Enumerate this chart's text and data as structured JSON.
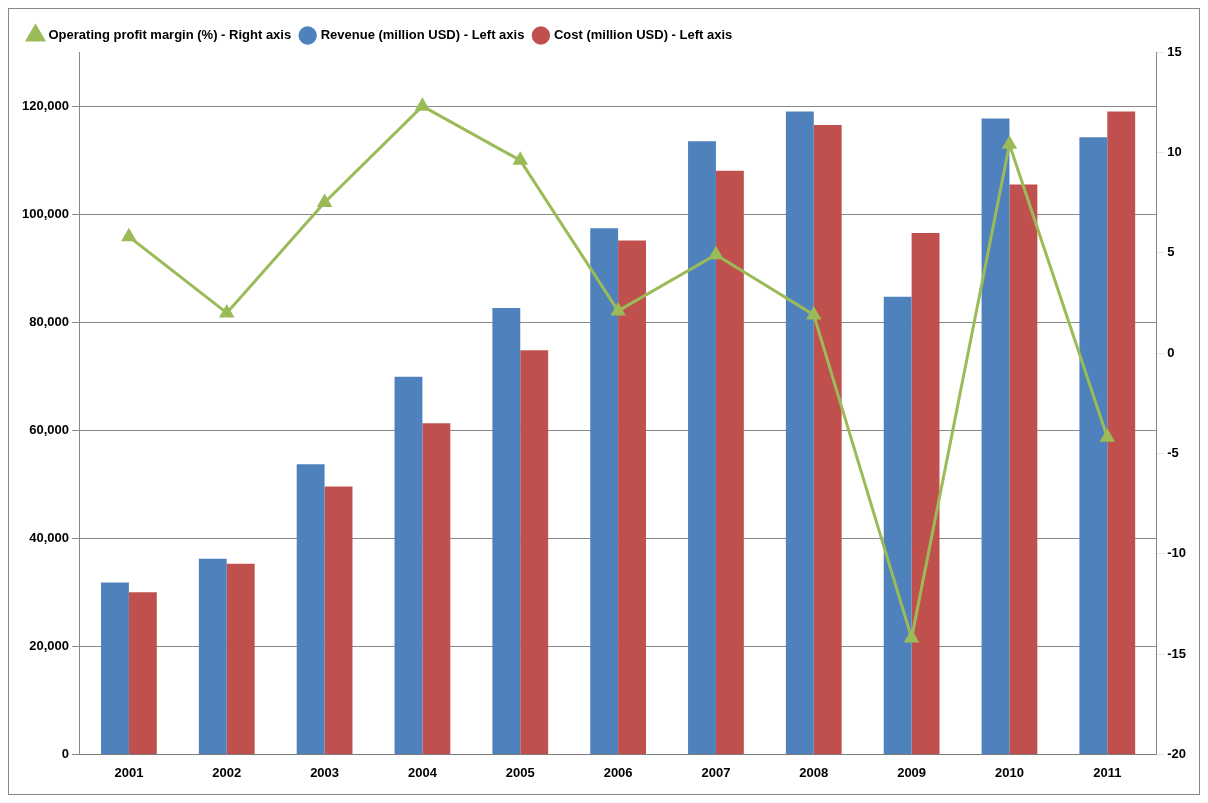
{
  "chart_data": {
    "type": "bar",
    "categories": [
      "2001",
      "2002",
      "2003",
      "2004",
      "2005",
      "2006",
      "2007",
      "2008",
      "2009",
      "2010",
      "2011"
    ],
    "series": [
      {
        "name": "Revenue (million USD) - Left axis",
        "color": "#4f81bd",
        "values": [
          31800,
          36200,
          53700,
          69900,
          82600,
          97400,
          113500,
          119000,
          84700,
          117700,
          114200
        ]
      },
      {
        "name": "Cost (million USD) - Left axis",
        "color": "#c0504d",
        "values": [
          30000,
          35300,
          49600,
          61300,
          74800,
          95100,
          108000,
          116500,
          96500,
          105500,
          119000
        ]
      },
      {
        "name": "Operating profit margin (%) - Right axis",
        "type": "line",
        "axis": "y2",
        "color": "#9bbb59",
        "marker": "triangle",
        "values": [
          5.8,
          2.0,
          7.5,
          12.3,
          9.6,
          2.1,
          4.9,
          1.9,
          -14.2,
          10.4,
          -4.2
        ]
      }
    ],
    "ylim": [
      0,
      130000
    ],
    "yticks": [
      {
        "value": 0,
        "label": "0"
      },
      {
        "value": 20000,
        "label": "20,000"
      },
      {
        "value": 40000,
        "label": "40,000"
      },
      {
        "value": 60000,
        "label": "60,000"
      },
      {
        "value": 80000,
        "label": "80,000"
      },
      {
        "value": 100000,
        "label": "100,000"
      },
      {
        "value": 120000,
        "label": "120,000"
      }
    ],
    "y2lim": [
      -20,
      15
    ],
    "y2ticks": [
      -20,
      -15,
      -10,
      -5,
      0,
      5,
      10,
      15
    ],
    "grid": "y",
    "legend": "top left"
  }
}
